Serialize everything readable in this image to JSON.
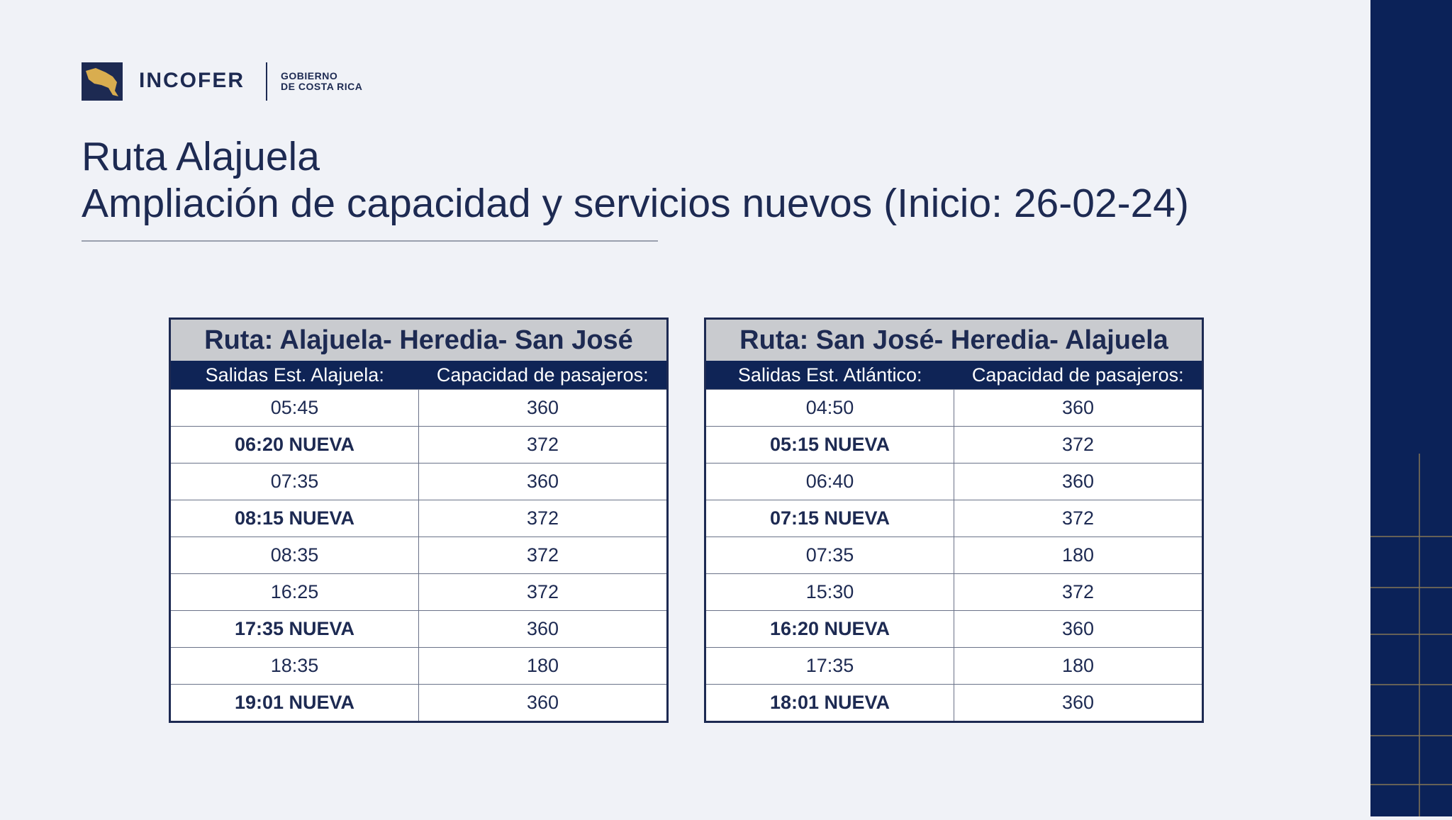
{
  "header": {
    "logo_text": "INCOFER",
    "gov_line1": "GOBIERNO",
    "gov_line2": "DE COSTA RICA"
  },
  "title": {
    "line1": "Ruta Alajuela",
    "line2": "Ampliación de capacidad y servicios nuevos (Inicio: 26-02-24)"
  },
  "tables": [
    {
      "title": "Ruta: Alajuela- Heredia- San José",
      "columns": [
        "Salidas Est. Alajuela:",
        "Capacidad de pasajeros:"
      ],
      "rows": [
        {
          "cells": [
            "05:45",
            360
          ],
          "emphasis": false
        },
        {
          "cells": [
            "06:20 NUEVA",
            372
          ],
          "emphasis": true
        },
        {
          "cells": [
            "07:35",
            360
          ],
          "emphasis": false
        },
        {
          "cells": [
            "08:15 NUEVA",
            372
          ],
          "emphasis": true
        },
        {
          "cells": [
            "08:35",
            372
          ],
          "emphasis": false
        },
        {
          "cells": [
            "16:25",
            372
          ],
          "emphasis": false
        },
        {
          "cells": [
            "17:35 NUEVA",
            360
          ],
          "emphasis": true
        },
        {
          "cells": [
            "18:35",
            180
          ],
          "emphasis": false
        },
        {
          "cells": [
            "19:01 NUEVA",
            360
          ],
          "emphasis": true
        }
      ]
    },
    {
      "title": "Ruta: San José- Heredia- Alajuela",
      "columns": [
        "Salidas Est. Atlántico:",
        "Capacidad de pasajeros:"
      ],
      "rows": [
        {
          "cells": [
            "04:50",
            360
          ],
          "emphasis": false
        },
        {
          "cells": [
            "05:15 NUEVA",
            372
          ],
          "emphasis": true
        },
        {
          "cells": [
            "06:40",
            360
          ],
          "emphasis": false
        },
        {
          "cells": [
            "07:15 NUEVA",
            372
          ],
          "emphasis": true
        },
        {
          "cells": [
            "07:35",
            180
          ],
          "emphasis": false
        },
        {
          "cells": [
            "15:30",
            372
          ],
          "emphasis": false
        },
        {
          "cells": [
            "16:20 NUEVA",
            360
          ],
          "emphasis": true
        },
        {
          "cells": [
            "17:35",
            180
          ],
          "emphasis": false
        },
        {
          "cells": [
            "18:01 NUEVA",
            360
          ],
          "emphasis": true
        }
      ]
    }
  ]
}
